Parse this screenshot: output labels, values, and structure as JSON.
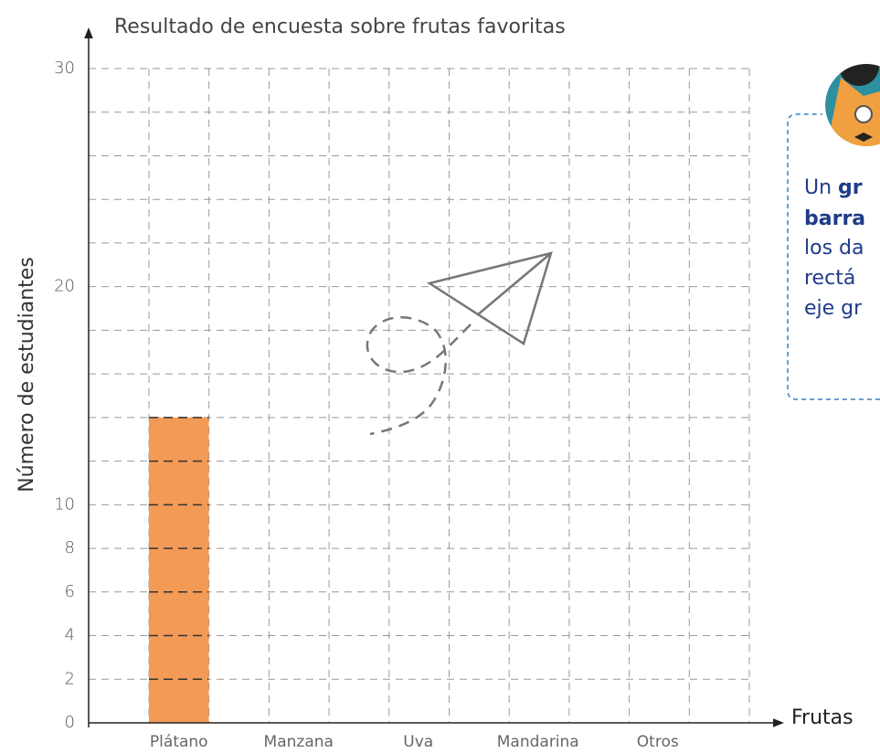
{
  "chart_data": {
    "type": "bar",
    "title": "Resultado de encuesta sobre frutas favoritas",
    "y_label": "Número de estudiantes",
    "x_label": "Frutas",
    "categories": [
      "Plátano",
      "Manzana",
      "Uva",
      "Mandarina",
      "Otros"
    ],
    "values": [
      14,
      null,
      null,
      null,
      null
    ],
    "color": "#f39a57",
    "ylim": [
      0,
      30
    ],
    "yticks": [
      0,
      2,
      4,
      6,
      8,
      10,
      20,
      30
    ],
    "grid": true
  },
  "note": {
    "line1a": "Un ",
    "line1b": "gr",
    "line2": "barra",
    "line3": "los da",
    "line4": "rectá",
    "line5": "eje gr"
  }
}
